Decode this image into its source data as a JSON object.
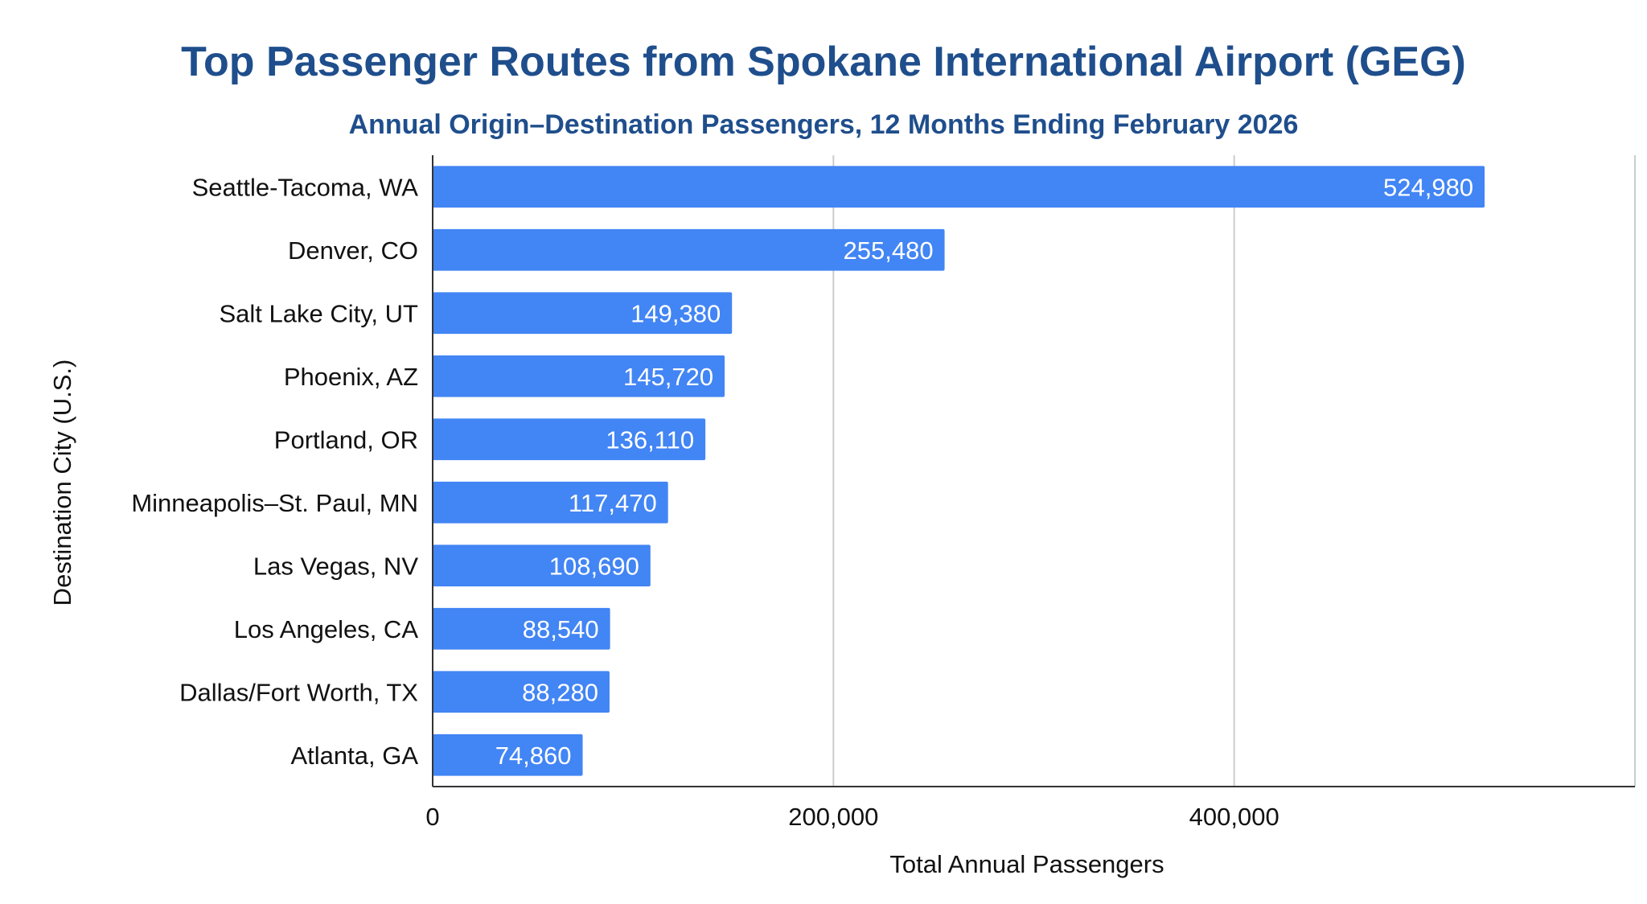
{
  "colors": {
    "title": "#1f4e8c",
    "bar": "#4285f4",
    "gridline": "#cccccc",
    "axis": "#333333"
  },
  "chart_data": {
    "type": "bar",
    "orientation": "horizontal",
    "title": "Top Passenger Routes from Spokane International Airport (GEG)",
    "subtitle": "Annual Origin–Destination Passengers, 12 Months Ending February 2026",
    "xlabel": "Total Annual Passengers",
    "ylabel": "Destination City (U.S.)",
    "categories": [
      "Seattle-Tacoma, WA",
      "Denver, CO",
      "Salt Lake City, UT",
      "Phoenix, AZ",
      "Portland, OR",
      "Minneapolis–St. Paul, MN",
      "Las Vegas, NV",
      "Los Angeles, CA",
      "Dallas/Fort Worth, TX",
      "Atlanta, GA"
    ],
    "values": [
      524980,
      255480,
      149380,
      145720,
      136110,
      117470,
      108690,
      88540,
      88280,
      74860
    ],
    "data_labels": [
      "524,980",
      "255,480",
      "149,380",
      "145,720",
      "136,110",
      "117,470",
      "108,690",
      "88,540",
      "88,280",
      "74,860"
    ],
    "xlim": [
      0,
      600000
    ],
    "xticks": [
      0,
      200000,
      400000
    ],
    "xtick_labels": [
      "0",
      "200,000",
      "400,000"
    ],
    "grid": true,
    "legend": "none"
  }
}
